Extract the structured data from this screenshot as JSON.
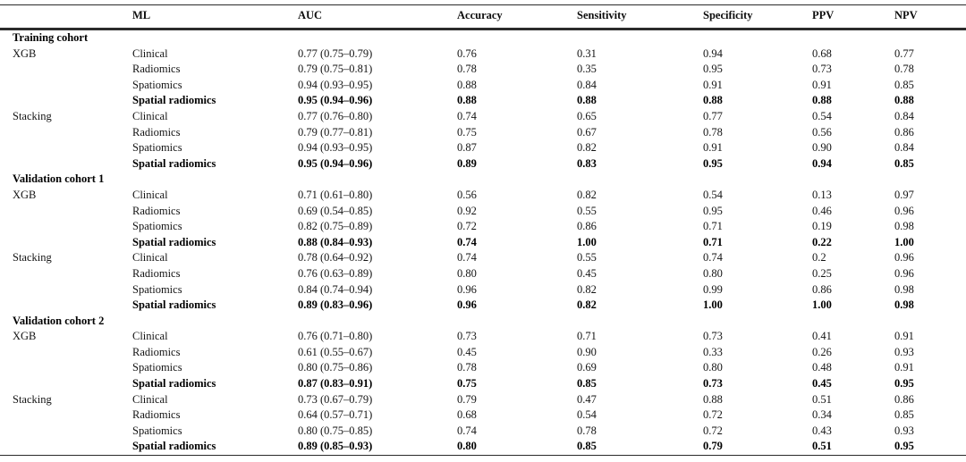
{
  "table": {
    "columns": [
      "",
      "ML",
      "AUC",
      "Accuracy",
      "Sensitivity",
      "Specificity",
      "PPV",
      "NPV"
    ],
    "sections": [
      {
        "title": "Training cohort",
        "groups": [
          {
            "ml": "XGB",
            "rows": [
              {
                "model": "Clinical",
                "auc": "0.77 (0.75–0.79)",
                "accuracy": "0.76",
                "sensitivity": "0.31",
                "specificity": "0.94",
                "ppv": "0.68",
                "npv": "0.77",
                "bold": false
              },
              {
                "model": "Radiomics",
                "auc": "0.79 (0.75–0.81)",
                "accuracy": "0.78",
                "sensitivity": "0.35",
                "specificity": "0.95",
                "ppv": "0.73",
                "npv": "0.78",
                "bold": false
              },
              {
                "model": "Spatiomics",
                "auc": "0.94 (0.93–0.95)",
                "accuracy": "0.88",
                "sensitivity": "0.84",
                "specificity": "0.91",
                "ppv": "0.91",
                "npv": "0.85",
                "bold": false
              },
              {
                "model": "Spatial radiomics",
                "auc": "0.95 (0.94–0.96)",
                "accuracy": "0.88",
                "sensitivity": "0.88",
                "specificity": "0.88",
                "ppv": "0.88",
                "npv": "0.88",
                "bold": true
              }
            ]
          },
          {
            "ml": "Stacking",
            "rows": [
              {
                "model": "Clinical",
                "auc": "0.77 (0.76–0.80)",
                "accuracy": "0.74",
                "sensitivity": "0.65",
                "specificity": "0.77",
                "ppv": "0.54",
                "npv": "0.84",
                "bold": false
              },
              {
                "model": "Radiomics",
                "auc": "0.79 (0.77–0.81)",
                "accuracy": "0.75",
                "sensitivity": "0.67",
                "specificity": "0.78",
                "ppv": "0.56",
                "npv": "0.86",
                "bold": false
              },
              {
                "model": "Spatiomics",
                "auc": "0.94 (0.93–0.95)",
                "accuracy": "0.87",
                "sensitivity": "0.82",
                "specificity": "0.91",
                "ppv": "0.90",
                "npv": "0.84",
                "bold": false
              },
              {
                "model": "Spatial radiomics",
                "auc": "0.95 (0.94–0.96)",
                "accuracy": "0.89",
                "sensitivity": "0.83",
                "specificity": "0.95",
                "ppv": "0.94",
                "npv": "0.85",
                "bold": true
              }
            ]
          }
        ]
      },
      {
        "title": "Validation cohort 1",
        "groups": [
          {
            "ml": "XGB",
            "rows": [
              {
                "model": "Clinical",
                "auc": "0.71 (0.61–0.80)",
                "accuracy": "0.56",
                "sensitivity": "0.82",
                "specificity": "0.54",
                "ppv": "0.13",
                "npv": "0.97",
                "bold": false
              },
              {
                "model": "Radiomics",
                "auc": "0.69 (0.54–0.85)",
                "accuracy": "0.92",
                "sensitivity": "0.55",
                "specificity": "0.95",
                "ppv": "0.46",
                "npv": "0.96",
                "bold": false
              },
              {
                "model": "Spatiomics",
                "auc": "0.82 (0.75–0.89)",
                "accuracy": "0.72",
                "sensitivity": "0.86",
                "specificity": "0.71",
                "ppv": "0.19",
                "npv": "0.98",
                "bold": false
              },
              {
                "model": "Spatial radiomics",
                "auc": "0.88 (0.84–0.93)",
                "accuracy": "0.74",
                "sensitivity": "1.00",
                "specificity": "0.71",
                "ppv": "0.22",
                "npv": "1.00",
                "bold": true
              }
            ]
          },
          {
            "ml": "Stacking",
            "rows": [
              {
                "model": "Clinical",
                "auc": "0.78 (0.64–0.92)",
                "accuracy": "0.74",
                "sensitivity": "0.55",
                "specificity": "0.74",
                "ppv": "0.2",
                "npv": "0.96",
                "bold": false
              },
              {
                "model": "Radiomics",
                "auc": "0.76 (0.63–0.89)",
                "accuracy": "0.80",
                "sensitivity": "0.45",
                "specificity": "0.80",
                "ppv": "0.25",
                "npv": "0.96",
                "bold": false
              },
              {
                "model": "Spatiomics",
                "auc": "0.84 (0.74–0.94)",
                "accuracy": "0.96",
                "sensitivity": "0.82",
                "specificity": "0.99",
                "ppv": "0.86",
                "npv": "0.98",
                "bold": false
              },
              {
                "model": "Spatial radiomics",
                "auc": "0.89 (0.83–0.96)",
                "accuracy": "0.96",
                "sensitivity": "0.82",
                "specificity": "1.00",
                "ppv": "1.00",
                "npv": "0.98",
                "bold": true
              }
            ]
          }
        ]
      },
      {
        "title": "Validation cohort 2",
        "groups": [
          {
            "ml": "XGB",
            "rows": [
              {
                "model": "Clinical",
                "auc": "0.76 (0.71–0.80)",
                "accuracy": "0.73",
                "sensitivity": "0.71",
                "specificity": "0.73",
                "ppv": "0.41",
                "npv": "0.91",
                "bold": false
              },
              {
                "model": "Radiomics",
                "auc": "0.61 (0.55–0.67)",
                "accuracy": "0.45",
                "sensitivity": "0.90",
                "specificity": "0.33",
                "ppv": "0.26",
                "npv": "0.93",
                "bold": false
              },
              {
                "model": "Spatiomics",
                "auc": "0.80 (0.75–0.86)",
                "accuracy": "0.78",
                "sensitivity": "0.69",
                "specificity": "0.80",
                "ppv": "0.48",
                "npv": "0.91",
                "bold": false
              },
              {
                "model": "Spatial radiomics",
                "auc": "0.87 (0.83–0.91)",
                "accuracy": "0.75",
                "sensitivity": "0.85",
                "specificity": "0.73",
                "ppv": "0.45",
                "npv": "0.95",
                "bold": true
              }
            ]
          },
          {
            "ml": "Stacking",
            "rows": [
              {
                "model": "Clinical",
                "auc": "0.73 (0.67–0.79)",
                "accuracy": "0.79",
                "sensitivity": "0.47",
                "specificity": "0.88",
                "ppv": "0.51",
                "npv": "0.86",
                "bold": false
              },
              {
                "model": "Radiomics",
                "auc": "0.64 (0.57–0.71)",
                "accuracy": "0.68",
                "sensitivity": "0.54",
                "specificity": "0.72",
                "ppv": "0.34",
                "npv": "0.85",
                "bold": false
              },
              {
                "model": "Spatiomics",
                "auc": "0.80 (0.75–0.85)",
                "accuracy": "0.74",
                "sensitivity": "0.78",
                "specificity": "0.72",
                "ppv": "0.43",
                "npv": "0.93",
                "bold": false
              },
              {
                "model": "Spatial radiomics",
                "auc": "0.89 (0.85–0.93)",
                "accuracy": "0.80",
                "sensitivity": "0.85",
                "specificity": "0.79",
                "ppv": "0.51",
                "npv": "0.95",
                "bold": true
              }
            ]
          }
        ]
      }
    ]
  }
}
